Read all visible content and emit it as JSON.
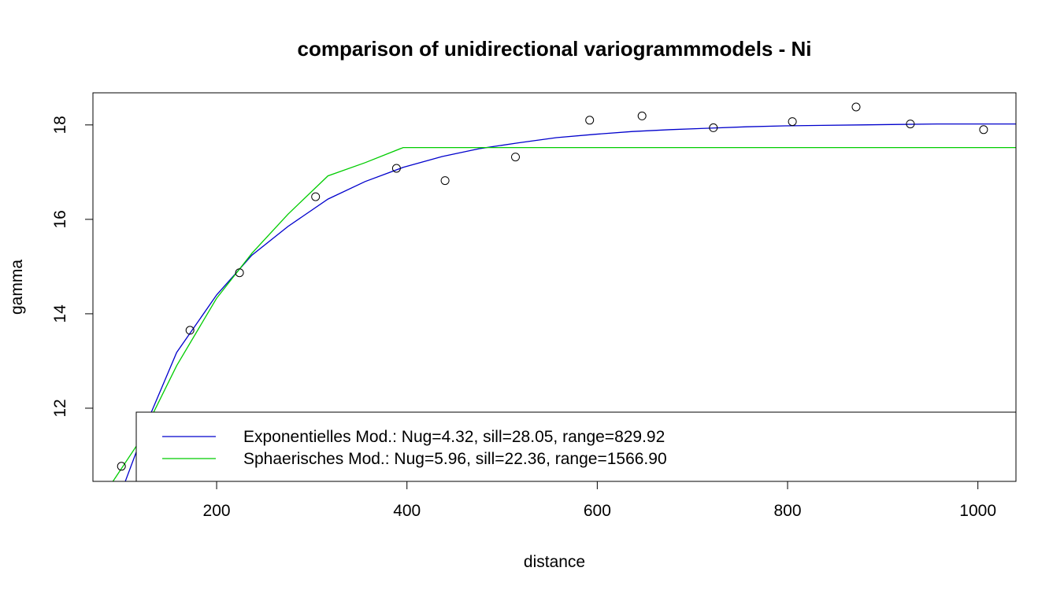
{
  "chart_data": {
    "type": "scatter",
    "title": "comparison of unidirectional variogrammmodels - Ni",
    "xlabel": "distance",
    "ylabel": "gamma",
    "xlim": [
      70,
      1040
    ],
    "ylim": [
      10.45,
      18.68
    ],
    "x_ticks": [
      200,
      400,
      600,
      800,
      1000
    ],
    "y_ticks": [
      12,
      14,
      16,
      18
    ],
    "grid": false,
    "legend_position": "bottom-right",
    "points": {
      "x": [
        100,
        172,
        224,
        304,
        389,
        440,
        514,
        592,
        647,
        722,
        805,
        872,
        929,
        1006
      ],
      "y": [
        10.77,
        13.65,
        14.87,
        16.48,
        17.08,
        16.82,
        17.32,
        18.1,
        18.19,
        17.94,
        18.07,
        18.38,
        18.02,
        17.9
      ]
    },
    "series": [
      {
        "name": "Exponentielles Mod.: Nug=4.32, sill=28.05, range=829.92",
        "color": "#0000cc",
        "x": [
          104,
          130,
          158,
          200,
          237,
          275,
          317,
          356,
          396,
          437,
          477,
          517,
          557,
          597,
          637,
          677,
          717,
          757,
          797,
          837,
          877,
          917,
          957,
          997,
          1040
        ],
        "y": [
          10.45,
          11.85,
          13.18,
          14.4,
          15.24,
          15.85,
          16.43,
          16.8,
          17.1,
          17.33,
          17.5,
          17.62,
          17.73,
          17.8,
          17.86,
          17.9,
          17.93,
          17.96,
          17.98,
          17.99,
          18.0,
          18.01,
          18.02,
          18.02,
          18.02
        ]
      },
      {
        "name": "Sphaerisches Mod.: Nug=5.96, sill=22.36, range=1566.90",
        "color": "#00cc00",
        "x": [
          91,
          118,
          158,
          200,
          237,
          275,
          317,
          356,
          396,
          437,
          477,
          1040
        ],
        "y": [
          10.45,
          11.27,
          12.9,
          14.33,
          15.28,
          16.11,
          16.92,
          17.2,
          17.52,
          17.52,
          17.52,
          17.52
        ]
      }
    ]
  }
}
